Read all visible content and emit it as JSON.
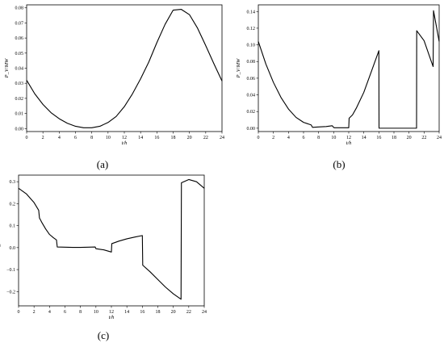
{
  "chart_data": [
    {
      "type": "line",
      "panel_label": "(a)",
      "xlabel": "t/h",
      "ylabel": "P_V/MW",
      "xlim": [
        0,
        24
      ],
      "ylim": [
        -0.002,
        0.082
      ],
      "xticks": [
        0,
        2,
        4,
        6,
        8,
        10,
        12,
        14,
        16,
        18,
        20,
        22,
        24
      ],
      "yticks": [
        0.0,
        0.01,
        0.02,
        0.03,
        0.04,
        0.05,
        0.06,
        0.07,
        0.08
      ],
      "ytick_labels": [
        "0.00",
        "0.01",
        "0.02",
        "0.03",
        "0.04",
        "0.05",
        "0.06",
        "0.07",
        "0.08"
      ],
      "grid": false,
      "series": [
        {
          "x": [
            0,
            1,
            2,
            3,
            4,
            5,
            6,
            7,
            8,
            9,
            10,
            11,
            12,
            13,
            14,
            15,
            16,
            17,
            18,
            19,
            20,
            21,
            22,
            23,
            24
          ],
          "y": [
            0.032,
            0.023,
            0.016,
            0.0105,
            0.0065,
            0.0035,
            0.0015,
            0.0005,
            0.0005,
            0.0015,
            0.004,
            0.008,
            0.0145,
            0.023,
            0.033,
            0.044,
            0.057,
            0.069,
            0.0785,
            0.079,
            0.0755,
            0.0665,
            0.055,
            0.043,
            0.0315
          ]
        }
      ]
    },
    {
      "type": "line",
      "panel_label": "(b)",
      "xlabel": "t/h",
      "ylabel": "P_V/MW",
      "xlim": [
        0,
        24
      ],
      "ylim": [
        -0.004,
        0.148
      ],
      "xticks": [
        0,
        2,
        4,
        6,
        8,
        10,
        12,
        14,
        16,
        18,
        20,
        22,
        24
      ],
      "yticks": [
        0.0,
        0.02,
        0.04,
        0.06,
        0.08,
        0.1,
        0.12,
        0.14
      ],
      "ytick_labels": [
        "0.00",
        "0.02",
        "0.04",
        "0.06",
        "0.08",
        "0.10",
        "0.12",
        "0.14"
      ],
      "grid": false,
      "series": [
        {
          "x": [
            0,
            1,
            2,
            3,
            4,
            5,
            6,
            7,
            7.2,
            8,
            9,
            9.8,
            10,
            10.1,
            11,
            12,
            12.05,
            12.5,
            13,
            14,
            15,
            16,
            16.02,
            18,
            20,
            21,
            21.02,
            22,
            23,
            23.2,
            23.25,
            24
          ],
          "y": [
            0.104,
            0.077,
            0.055,
            0.037,
            0.023,
            0.013,
            0.007,
            0.004,
            0.001,
            0.0015,
            0.002,
            0.003,
            0.001,
            0.0005,
            0.0005,
            0.0005,
            0.012,
            0.016,
            0.024,
            0.043,
            0.068,
            0.093,
            0.0,
            0.0,
            0.0,
            0.0,
            0.117,
            0.105,
            0.079,
            0.074,
            0.141,
            0.104
          ]
        }
      ]
    },
    {
      "type": "line",
      "panel_label": "(c)",
      "xlabel": "t/h",
      "ylabel": "P_V/MW",
      "xlim": [
        0,
        24
      ],
      "ylim": [
        -0.265,
        0.33
      ],
      "xticks": [
        0,
        2,
        4,
        6,
        8,
        10,
        12,
        14,
        16,
        18,
        20,
        22,
        24
      ],
      "yticks": [
        -0.2,
        -0.1,
        0.0,
        0.1,
        0.2,
        0.3
      ],
      "ytick_labels": [
        "−0.2",
        "−0.1",
        "0.0",
        "0.1",
        "0.2",
        "0.3"
      ],
      "grid": false,
      "series": [
        {
          "x": [
            0,
            1,
            2,
            2.6,
            2.7,
            3,
            3.5,
            4,
            4.5,
            4.9,
            5.0,
            6,
            7,
            8,
            9,
            9.9,
            10.0,
            11,
            12,
            12.05,
            13,
            14,
            15,
            16,
            16.05,
            17,
            18,
            19,
            20,
            21,
            21.05,
            22,
            23,
            24
          ],
          "y": [
            0.27,
            0.245,
            0.205,
            0.17,
            0.135,
            0.115,
            0.085,
            0.06,
            0.045,
            0.035,
            0.003,
            0.002,
            0.001,
            0.001,
            0.002,
            0.003,
            -0.005,
            -0.01,
            -0.02,
            0.018,
            0.03,
            0.04,
            0.048,
            0.055,
            -0.08,
            -0.11,
            -0.145,
            -0.18,
            -0.21,
            -0.235,
            0.295,
            0.31,
            0.3,
            0.27
          ]
        }
      ]
    }
  ]
}
